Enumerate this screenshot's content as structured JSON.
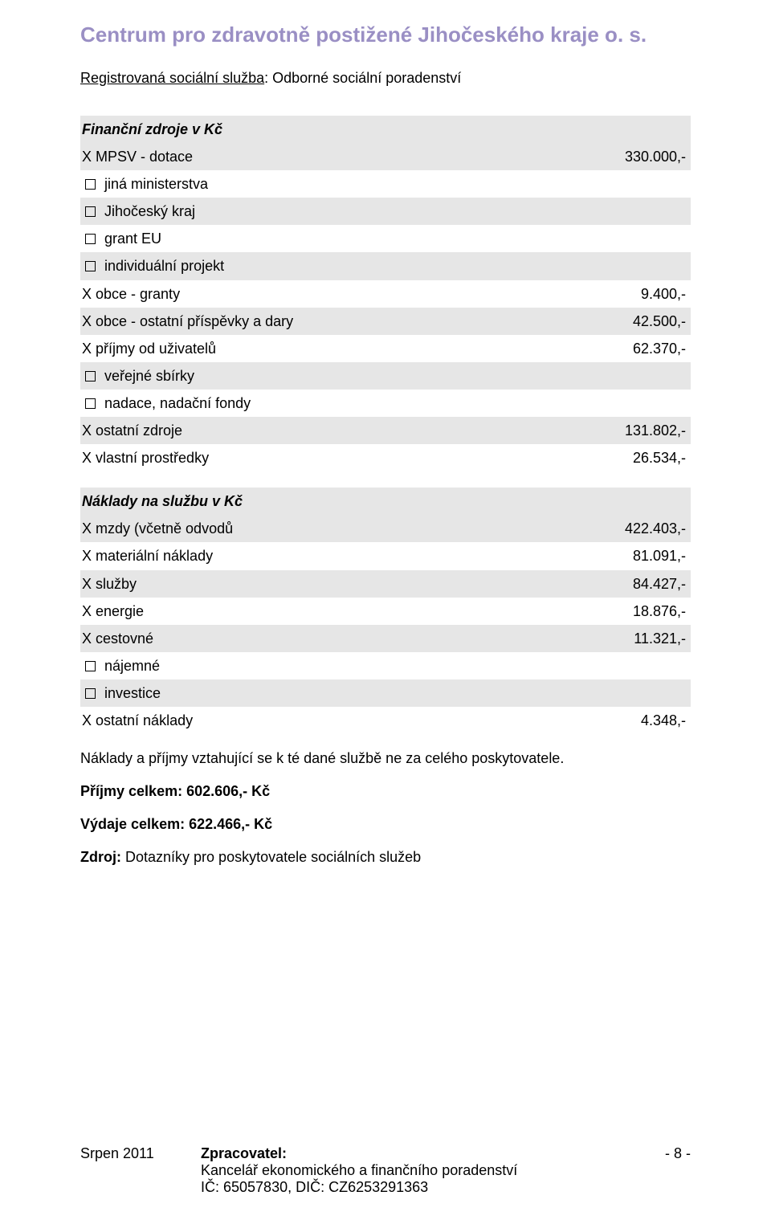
{
  "colors": {
    "title": "#9a8fc4",
    "shaded_bg": "#e6e6e6",
    "text": "#000000",
    "background": "#ffffff"
  },
  "title": "Centrum pro zdravotně postižené Jihočeského kraje o. s.",
  "reg": {
    "label": "Registrovaná sociální služba",
    "value": ": Odborné sociální poradenství"
  },
  "section1": {
    "header": "Finanční zdroje v Kč",
    "rows": [
      {
        "type": "x",
        "label": "MPSV - dotace",
        "value": "330.000,-",
        "shaded": true
      },
      {
        "type": "chk",
        "label": "jiná ministerstva",
        "value": "",
        "shaded": false
      },
      {
        "type": "chk",
        "label": "Jihočeský kraj",
        "value": "",
        "shaded": true
      },
      {
        "type": "chk",
        "label": "grant EU",
        "value": "",
        "shaded": false
      },
      {
        "type": "chk",
        "label": "individuální projekt",
        "value": "",
        "shaded": true
      },
      {
        "type": "x",
        "label": "obce - granty",
        "value": "9.400,-",
        "shaded": false
      },
      {
        "type": "x",
        "label": "obce - ostatní příspěvky a dary",
        "value": "42.500,-",
        "shaded": true
      },
      {
        "type": "x",
        "label": "příjmy od uživatelů",
        "value": "62.370,-",
        "shaded": false
      },
      {
        "type": "chk",
        "label": "veřejné sbírky",
        "value": "",
        "shaded": true
      },
      {
        "type": "chk",
        "label": "nadace, nadační fondy",
        "value": "",
        "shaded": false
      },
      {
        "type": "x",
        "label": "ostatní zdroje",
        "value": "131.802,-",
        "shaded": true
      },
      {
        "type": "x",
        "label": "vlastní prostředky",
        "value": "26.534,-",
        "shaded": false
      }
    ]
  },
  "section2": {
    "header": "Náklady na službu v Kč",
    "rows": [
      {
        "type": "x",
        "label": "mzdy (včetně odvodů",
        "value": "422.403,-",
        "shaded": true
      },
      {
        "type": "x",
        "label": "materiální náklady",
        "value": "81.091,-",
        "shaded": false
      },
      {
        "type": "x",
        "label": "služby",
        "value": "84.427,-",
        "shaded": true
      },
      {
        "type": "x",
        "label": "energie",
        "value": "18.876,-",
        "shaded": false
      },
      {
        "type": "x",
        "label": "cestovné",
        "value": "11.321,-",
        "shaded": true
      },
      {
        "type": "chk",
        "label": "nájemné",
        "value": "",
        "shaded": false
      },
      {
        "type": "chk",
        "label": "investice",
        "value": "",
        "shaded": true
      },
      {
        "type": "x",
        "label": "ostatní náklady",
        "value": "4.348,-",
        "shaded": false
      }
    ]
  },
  "note": "Náklady a příjmy vztahující se k té dané službě ne za celého poskytovatele.",
  "totals": {
    "income": "Příjmy celkem: 602.606,- Kč",
    "expense": "Výdaje celkem: 622.466,- Kč"
  },
  "source": {
    "label": "Zdroj:",
    "text": " Dotazníky pro poskytovatele sociálních služeb"
  },
  "footer": {
    "left": "Srpen 2011",
    "center_label": "Zpracovatel:",
    "center_line1": "Kancelář ekonomického a finančního poradenství",
    "center_line2": "IČ: 65057830, DIČ: CZ6253291363",
    "right": "- 8 -"
  }
}
